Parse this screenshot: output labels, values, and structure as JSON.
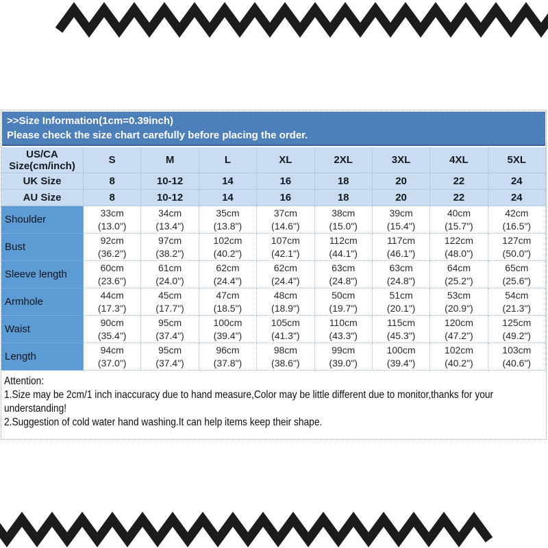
{
  "banner": {
    "line1": ">>Size Information(1cm=0.39inch)",
    "line2": "Please check the size chart carefully before placing the order."
  },
  "table": {
    "corner_line1": "US/CA",
    "corner_line2": "Size(cm/inch)",
    "sizes": [
      "S",
      "M",
      "L",
      "XL",
      "2XL",
      "3XL",
      "4XL",
      "5XL"
    ],
    "uk_row": {
      "label": "UK Size",
      "values": [
        "8",
        "10-12",
        "14",
        "16",
        "18",
        "20",
        "22",
        "24"
      ]
    },
    "au_row": {
      "label": "AU Size",
      "values": [
        "8",
        "10-12",
        "14",
        "16",
        "18",
        "20",
        "22",
        "24"
      ]
    },
    "measurement_rows": [
      {
        "label": "Shoulder",
        "cm": [
          "33cm",
          "34cm",
          "35cm",
          "37cm",
          "38cm",
          "39cm",
          "40cm",
          "42cm"
        ],
        "inch": [
          "(13.0\")",
          "(13.4\")",
          "(13.8\")",
          "(14.6\")",
          "(15.0\")",
          "(15.4\")",
          "(15.7\")",
          "(16.5\")"
        ]
      },
      {
        "label": "Bust",
        "cm": [
          "92cm",
          "97cm",
          "102cm",
          "107cm",
          "112cm",
          "117cm",
          "122cm",
          "127cm"
        ],
        "inch": [
          "(36.2\")",
          "(38.2\")",
          "(40.2\")",
          "(42.1\")",
          "(44.1\")",
          "(46.1\")",
          "(48.0\")",
          "(50.0\")"
        ]
      },
      {
        "label": "Sleeve length",
        "cm": [
          "60cm",
          "61cm",
          "62cm",
          "62cm",
          "63cm",
          "63cm",
          "64cm",
          "65cm"
        ],
        "inch": [
          "(23.6\")",
          "(24.0\")",
          "(24.4\")",
          "(24.4\")",
          "(24.8\")",
          "(24.8\")",
          "(25.2\")",
          "(25.6\")"
        ]
      },
      {
        "label": "Armhole",
        "cm": [
          "44cm",
          "45cm",
          "47cm",
          "48cm",
          "50cm",
          "51cm",
          "53cm",
          "54cm"
        ],
        "inch": [
          "(17.3\")",
          "(17.7\")",
          "(18.5\")",
          "(18.9\")",
          "(19.7\")",
          "(20.1\")",
          "(20.9\")",
          "(21.3\")"
        ]
      },
      {
        "label": "Waist",
        "cm": [
          "90cm",
          "95cm",
          "100cm",
          "105cm",
          "110cm",
          "115cm",
          "120cm",
          "125cm"
        ],
        "inch": [
          "(35.4\")",
          "(37.4\")",
          "(39.4\")",
          "(41.3\")",
          "(43.3\")",
          "(45.3\")",
          "(47.2\")",
          "(49.2\")"
        ]
      },
      {
        "label": "Length",
        "cm": [
          "94cm",
          "95cm",
          "96cm",
          "98cm",
          "99cm",
          "100cm",
          "102cm",
          "103cm"
        ],
        "inch": [
          "(37.0\")",
          "(37.4\")",
          "(37.8\")",
          "(38.6\")",
          "(39.0\")",
          "(39.4\")",
          "(40.2\")",
          "(40.6\")"
        ]
      }
    ]
  },
  "attention": {
    "title": "Attention:",
    "line1": "1.Size may be 2cm/1 inch inaccuracy due to hand measure,Color may be little different due to monitor,thanks for your understanding!",
    "line2": "2.Suggestion of cold water hand washing.It can help items keep their shape."
  },
  "colors": {
    "banner_bg": "#4d80ba",
    "header_bg": "#c9dcf1",
    "row_label_bg": "#5d9bd5",
    "grid_dotted": "#9fbbdd",
    "ribbon": "#1c1c1c",
    "banner_text": "#ffffff"
  },
  "chart_data": {
    "type": "table",
    "title": ">>Size Information(1cm=0.39inch)",
    "columns": [
      "US/CA Size(cm/inch)",
      "S",
      "M",
      "L",
      "XL",
      "2XL",
      "3XL",
      "4XL",
      "5XL"
    ],
    "rows": [
      [
        "UK Size",
        "8",
        "10-12",
        "14",
        "16",
        "18",
        "20",
        "22",
        "24"
      ],
      [
        "AU Size",
        "8",
        "10-12",
        "14",
        "16",
        "18",
        "20",
        "22",
        "24"
      ],
      [
        "Shoulder",
        "33cm (13.0\")",
        "34cm (13.4\")",
        "35cm (13.8\")",
        "37cm (14.6\")",
        "38cm (15.0\")",
        "39cm (15.4\")",
        "40cm (15.7\")",
        "42cm (16.5\")"
      ],
      [
        "Bust",
        "92cm (36.2\")",
        "97cm (38.2\")",
        "102cm (40.2\")",
        "107cm (42.1\")",
        "112cm (44.1\")",
        "117cm (46.1\")",
        "122cm (48.0\")",
        "127cm (50.0\")"
      ],
      [
        "Sleeve length",
        "60cm (23.6\")",
        "61cm (24.0\")",
        "62cm (24.4\")",
        "62cm (24.4\")",
        "63cm (24.8\")",
        "63cm (24.8\")",
        "64cm (25.2\")",
        "65cm (25.6\")"
      ],
      [
        "Armhole",
        "44cm (17.3\")",
        "45cm (17.7\")",
        "47cm (18.5\")",
        "48cm (18.9\")",
        "50cm (19.7\")",
        "51cm (20.1\")",
        "53cm (20.9\")",
        "54cm (21.3\")"
      ],
      [
        "Waist",
        "90cm (35.4\")",
        "95cm (37.4\")",
        "100cm (39.4\")",
        "105cm (41.3\")",
        "110cm (43.3\")",
        "115cm (45.3\")",
        "120cm (47.2\")",
        "125cm (49.2\")"
      ],
      [
        "Length",
        "94cm (37.0\")",
        "95cm (37.4\")",
        "96cm (37.8\")",
        "98cm (38.6\")",
        "99cm (39.0\")",
        "100cm (39.4\")",
        "102cm (40.2\")",
        "103cm (40.6\")"
      ]
    ]
  }
}
